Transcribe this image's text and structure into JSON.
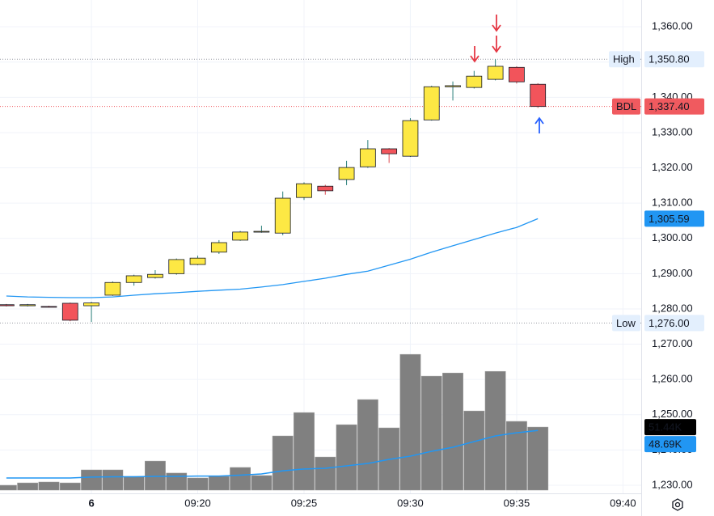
{
  "chart_data": {
    "type": "candlestick",
    "xlim": [
      -0.3,
      29.86
    ],
    "xticks": [
      {
        "value": 4,
        "label": "6"
      },
      {
        "value": 9,
        "label": "09:20"
      },
      {
        "value": 14,
        "label": "09:25"
      },
      {
        "value": 19,
        "label": "09:30"
      },
      {
        "value": 24,
        "label": "09:35"
      },
      {
        "value": 29,
        "label": "09:40"
      }
    ],
    "ylim": [
      1227.7,
      1367.6
    ],
    "yticks": [
      {
        "value": 1230,
        "label": "1,230.00"
      },
      {
        "value": 1240,
        "label": "1,240.00"
      },
      {
        "value": 1250,
        "label": "1,250.00"
      },
      {
        "value": 1260,
        "label": "1,260.00"
      },
      {
        "value": 1270,
        "label": "1,270.00"
      },
      {
        "value": 1280,
        "label": "1,280.00"
      },
      {
        "value": 1290,
        "label": "1,290.00"
      },
      {
        "value": 1300,
        "label": "1,300.00"
      },
      {
        "value": 1310,
        "label": "1,310.00"
      },
      {
        "value": 1320,
        "label": "1,320.00"
      },
      {
        "value": 1330,
        "label": "1,330.00"
      },
      {
        "value": 1340,
        "label": "1,340.00"
      },
      {
        "value": 1350,
        "label": "1,350.00"
      },
      {
        "value": 1360,
        "label": "1,360.00"
      }
    ],
    "grid": true,
    "up_color": "#fde844",
    "down_color": "#f2545b",
    "up_wick_color": "#2a7f7a",
    "down_wick_color": "#e04850",
    "candles": {
      "open": [
        1281.2,
        1280.9,
        1280.7,
        1281.6,
        1280.9,
        1283.9,
        1287.5,
        1288.9,
        1290.0,
        1292.6,
        1296.1,
        1299.5,
        1301.8,
        1301.5,
        1311.6,
        1314.8,
        1316.7,
        1320.3,
        1325.4,
        1323.3,
        1333.6,
        1343.0,
        1342.8,
        1345.1,
        1348.5,
        1343.7
      ],
      "high": [
        1281.4,
        1281.4,
        1280.9,
        1281.8,
        1282.0,
        1287.8,
        1289.7,
        1291.0,
        1294.3,
        1295.1,
        1299.5,
        1302.1,
        1303.6,
        1313.3,
        1315.9,
        1315.2,
        1322.0,
        1327.9,
        1325.6,
        1334.1,
        1343.3,
        1344.5,
        1347.5,
        1350.8,
        1348.8,
        1344.0
      ],
      "low": [
        1280.7,
        1280.7,
        1280.4,
        1276.5,
        1276.3,
        1283.7,
        1286.6,
        1288.6,
        1289.7,
        1292.4,
        1295.6,
        1299.3,
        1301.6,
        1300.9,
        1310.9,
        1312.4,
        1315.1,
        1320.0,
        1321.4,
        1323.1,
        1333.4,
        1339.1,
        1342.5,
        1344.8,
        1343.9,
        1337.0
      ],
      "close": [
        1280.9,
        1281.2,
        1280.6,
        1276.8,
        1281.7,
        1287.5,
        1289.4,
        1289.8,
        1294.0,
        1294.4,
        1298.8,
        1301.8,
        1302.0,
        1311.4,
        1315.5,
        1313.5,
        1320.1,
        1325.4,
        1324.0,
        1333.4,
        1343.0,
        1343.3,
        1346.0,
        1348.8,
        1344.4,
        1337.4
      ]
    },
    "ma": {
      "color": "#2196f3",
      "values": [
        1283.65,
        1283.4,
        1283.3,
        1283.2,
        1283.2,
        1283.4,
        1283.9,
        1284.3,
        1284.6,
        1285.0,
        1285.3,
        1285.6,
        1286.2,
        1286.9,
        1287.8,
        1288.7,
        1289.8,
        1290.7,
        1292.4,
        1294.1,
        1296.1,
        1297.9,
        1299.7,
        1301.5,
        1303.1,
        1305.59
      ],
      "last_label": "1,305.59"
    },
    "high_line": {
      "label": "High",
      "value": 1350.8,
      "value_label": "1,350.80"
    },
    "low_line": {
      "label": "Low",
      "value": 1276.0,
      "value_label": "1,276.00"
    },
    "last_price": {
      "label": "BDL",
      "value": 1337.4,
      "value_label": "1,337.40",
      "color": "#f05a5f"
    },
    "volume": {
      "color": "#808080",
      "ylim": [
        0,
        400
      ],
      "values": [
        3.96,
        5.9,
        6.6,
        5.9,
        16.5,
        16.5,
        11.2,
        23.7,
        13.9,
        9.9,
        11.2,
        18.5,
        11.9,
        44.2,
        63.3,
        27.0,
        53.4,
        73.9,
        50.8,
        110.8,
        93.0,
        95.6,
        64.6,
        96.9,
        56.1,
        51.44
      ],
      "last_label": "51.44K",
      "ma_color": "#2196f3",
      "ma_values": [
        9.9,
        9.9,
        9.9,
        9.9,
        10.6,
        10.9,
        10.9,
        11.2,
        11.2,
        11.5,
        11.5,
        12.2,
        13.2,
        15.8,
        17.2,
        17.8,
        19.8,
        21.8,
        25.1,
        27.7,
        31.7,
        35.0,
        39.6,
        44.2,
        46.8,
        48.69
      ],
      "ma_last_label": "48.69K"
    }
  }
}
